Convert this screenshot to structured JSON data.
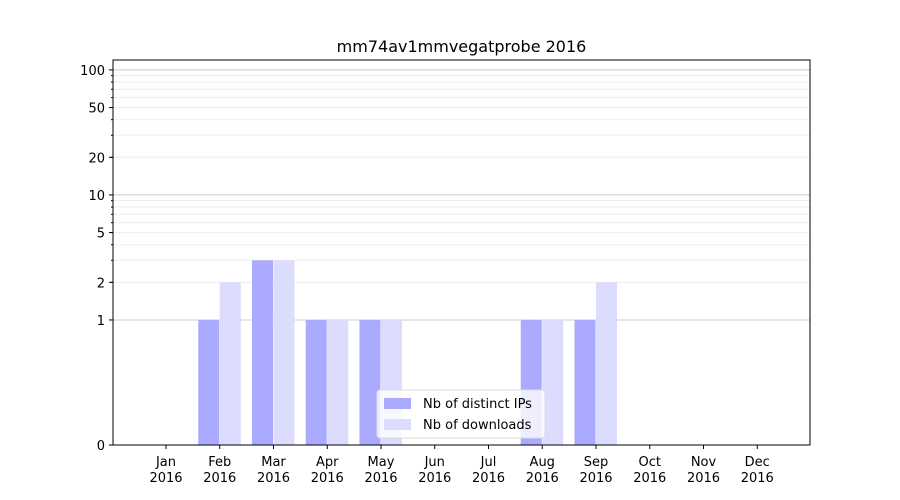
{
  "chart_data": {
    "type": "bar",
    "title": "mm74av1mmvegatprobe 2016",
    "xlabel": "",
    "ylabel": "",
    "categories": [
      [
        "Jan",
        "2016"
      ],
      [
        "Feb",
        "2016"
      ],
      [
        "Mar",
        "2016"
      ],
      [
        "Apr",
        "2016"
      ],
      [
        "May",
        "2016"
      ],
      [
        "Jun",
        "2016"
      ],
      [
        "Jul",
        "2016"
      ],
      [
        "Aug",
        "2016"
      ],
      [
        "Sep",
        "2016"
      ],
      [
        "Oct",
        "2016"
      ],
      [
        "Nov",
        "2016"
      ],
      [
        "Dec",
        "2016"
      ]
    ],
    "series": [
      {
        "name": "Nb of distinct IPs",
        "color": "#aaaaff",
        "values": [
          0,
          1,
          3,
          1,
          1,
          0,
          0,
          1,
          1,
          0,
          0,
          0
        ]
      },
      {
        "name": "Nb of downloads",
        "color": "#dcdcff",
        "values": [
          0,
          2,
          3,
          1,
          1,
          0,
          0,
          1,
          2,
          0,
          0,
          0
        ]
      }
    ],
    "y_scale": "symlog",
    "ylim": [
      0,
      120
    ],
    "yticks": [
      0,
      1,
      2,
      5,
      10,
      20,
      50,
      100
    ],
    "grid": true,
    "legend": "lower center"
  }
}
